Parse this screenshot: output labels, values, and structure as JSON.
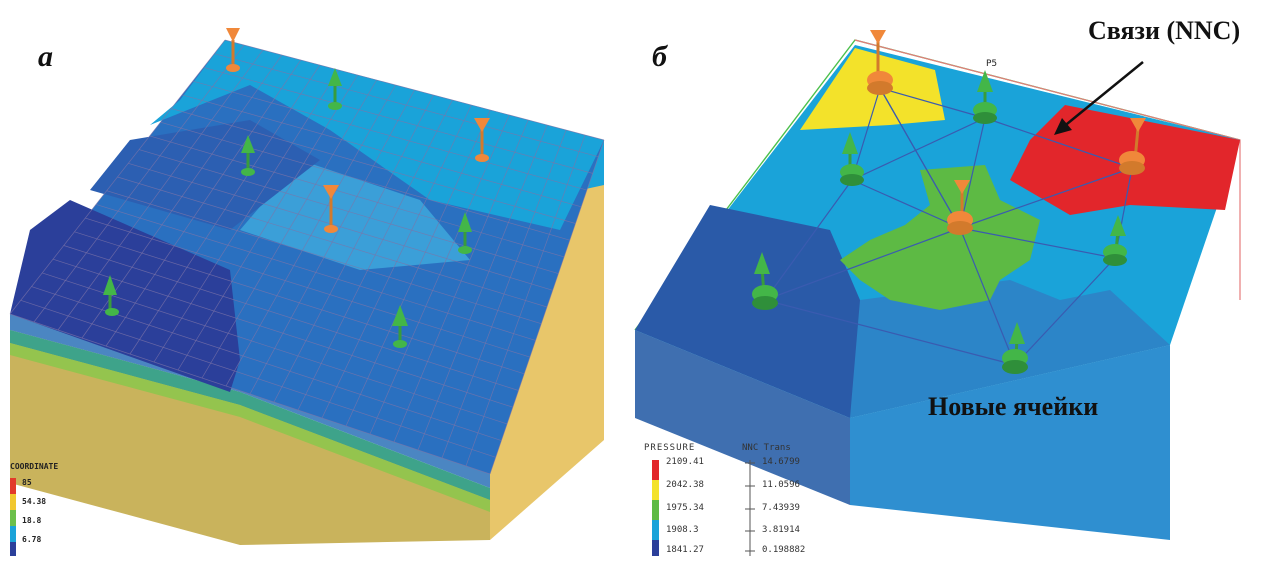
{
  "panels": {
    "left": {
      "label": "а"
    },
    "right": {
      "label": "б"
    }
  },
  "annotations": {
    "links": "Связи (NNC)",
    "new_cells": "Новые ячейки"
  },
  "legend_left": {
    "title": "COORDINATE",
    "ticks": [
      "85",
      "54.38",
      "18.8",
      "6.78",
      ""
    ]
  },
  "legend_pressure": {
    "title": "PRESSURE",
    "ticks": [
      "2109.41",
      "2042.38",
      "1975.34",
      "1908.3",
      "1841.27"
    ]
  },
  "legend_nnc": {
    "title": "NNC Trans",
    "ticks": [
      "14.6799",
      "11.0596",
      "7.43939",
      "3.81914",
      "0.198882"
    ]
  },
  "well_labels": {
    "p5": "P5"
  },
  "colors": {
    "light_blue": "#1aa3d9",
    "mid_blue": "#2a70c0",
    "dark_blue": "#2b3f9a",
    "yellow": "#f3e22a",
    "red": "#e2262b",
    "green": "#5dba44",
    "orange": "#f0883a",
    "well_green": "#43b648"
  }
}
